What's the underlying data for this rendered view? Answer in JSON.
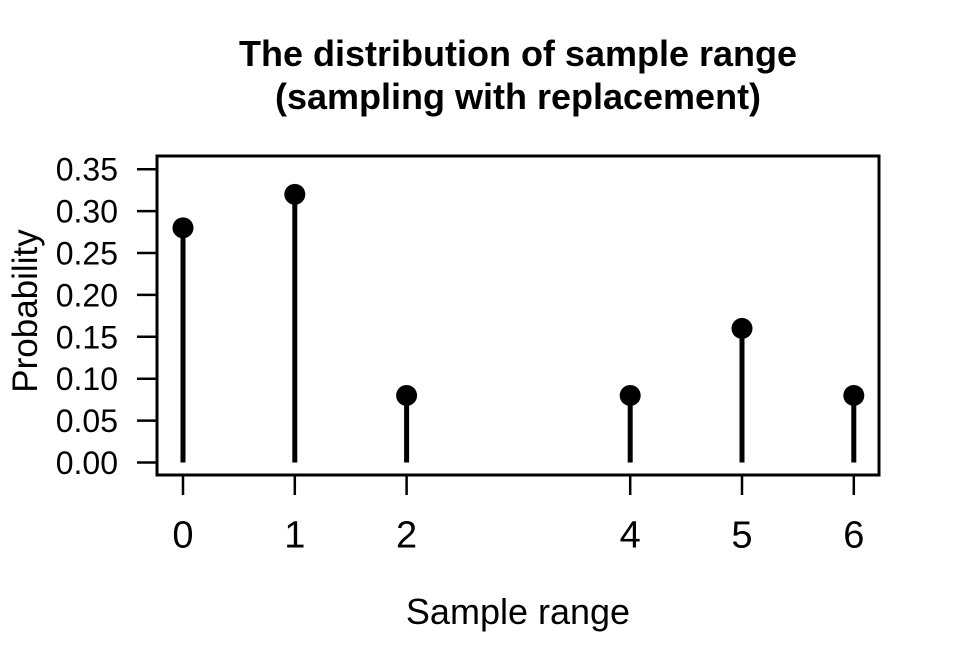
{
  "title": {
    "line1": "The distribution of sample range",
    "line2": "(sampling with replacement)"
  },
  "chart_data": {
    "type": "scatter",
    "variant": "stem-lollipop (vertical stems from zero with filled circle markers, R type='h' style)",
    "title": "The distribution of sample range (sampling with replacement)",
    "xlabel": "Sample range",
    "ylabel": "Probability",
    "x": [
      0,
      1,
      2,
      4,
      5,
      6
    ],
    "y": [
      0.28,
      0.32,
      0.08,
      0.08,
      0.16,
      0.08
    ],
    "x_ticks": [
      0,
      1,
      2,
      4,
      5,
      6
    ],
    "x_tick_labels": [
      "0",
      "1",
      "2",
      "4",
      "5",
      "6"
    ],
    "y_ticks": [
      0.0,
      0.05,
      0.1,
      0.15,
      0.2,
      0.25,
      0.3,
      0.35
    ],
    "y_tick_labels": [
      "0.00",
      "0.05",
      "0.10",
      "0.15",
      "0.20",
      "0.25",
      "0.30",
      "0.35"
    ],
    "xlim": [
      -0.23,
      6.23
    ],
    "ylim": [
      -0.015,
      0.366
    ],
    "grid": false,
    "legend": false,
    "marker": "filled-circle",
    "colors": {
      "foreground": "#000000",
      "background": "#FFFFFF"
    }
  }
}
